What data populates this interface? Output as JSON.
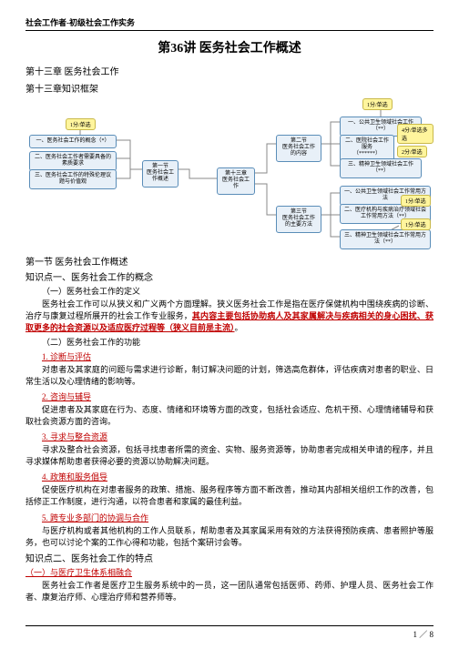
{
  "header": "社会工作者-初级社会工作实务",
  "title": "第36讲 医务社会工作概述",
  "chapter1": "第十三章 医务社会工作",
  "chapter2": "第十三章知识框架",
  "diagram": {
    "colors": {
      "node_fill": "#e8f0f8",
      "node_border": "#5a8db8",
      "tag_fill": "#fff59d",
      "tag_border": "#c9b94a",
      "line": "#888"
    },
    "nodes": {
      "root": "第十三章\n医务社会工作",
      "s1": "第一节\n医务社会工作概述",
      "s2": "第二节\n医务社会工作的内容",
      "s3": "第三节\n医务社会工作的主要方法",
      "l1": "一、医务社会工作的概念（*）",
      "l2": "二、医务社会工作者需要具备的素质要求",
      "l3": "三、医务社会工作的特殊伦理议题与价值观",
      "r1": "一、公共卫生领域社会工作（**）",
      "r2": "二、医院社会工作服务\n（******）",
      "r3": "三、精神卫生领域社会工作（**）",
      "rm1": "一、公共卫生领域社会工作常用方法",
      "rm2": "二、医疗机构与疾病治疗领域社会工作常用方法（**）",
      "rm3": "三、精神卫生领域社会工作常用方法（**）"
    },
    "tags": {
      "t_l1": "1分/单选",
      "t_r1": "1分/单选",
      "t_r2": "4分/单选多选",
      "t_r3": "2分/单选",
      "t_rm2": "1分/单选",
      "t_rm3": "1分/单选"
    }
  },
  "body": {
    "sec1": "第一节 医务社会工作概述",
    "kp1": "知识点一、医务社会工作的概念",
    "sub1": "（一）医务社会工作的定义",
    "para1a": "医务社会工作可以从狭义和广义两个方面理解。狭义医务社会工作是指在医疗保健机构中围绕疾病的诊断、治疗与康复过程所展开的社会工作专业服务，",
    "para1b": "其内容主要包括协助病人及其家属解决与疾病相关的身心困扰、获取更多的社会资源以及适应医疗过程等（狭义目前是主流）",
    "para1c": "。",
    "sub2": "（二）医务社会工作的功能",
    "i1h": "1. 诊断与评估",
    "i1p": "对患者及其家庭的问题与需求进行诊断，制订解决问题的计划，筛选高危群体，评估疾病对患者的职业、日常生活以及心理情绪的影响等。",
    "i2h": "2. 咨询与辅导",
    "i2p": "促进患者及其家庭在行为、态度、情绪和环境等方面的改变，包括社会适应、危机干预、心理情绪辅导和获取社会资源方面的咨询。",
    "i3h": "3. 寻求与整合资源",
    "i3p": "寻求及整合社会资源，包括寻找患者所需的资金、实物、服务资源等，协助患者完成相关申请的程序，并且寻求媒体帮助患者获得必要的资源以协助解决问题。",
    "i4h": "4. 政策和服务倡导",
    "i4p": "促使医疗机构在对患者服务的政策、措施、服务程序等方面不断改善，推动其内部相关组织工作的改善，包括修正工作制度，进行沟通，以符合患者和家属的最佳利益。",
    "i5h": "5. 跨专业多部门的协调与合作",
    "i5p": "与医疗机构或者其他机构的工作人员联系，帮助患者及其家属采用有效的方法获得预防疾病、患者照护等服务，也可以讨论个案的工作心得和功能，包括个案研讨会等。",
    "kp2": "知识点二、医务社会工作的特点",
    "sub3": "（一）与医疗卫生体系相融合",
    "para3": "医务社会工作者是医疗卫生服务系统中的一员，这一团队通常包括医师、药师、护理人员、医务社会工作者、康复治疗师、心理治疗师和营养师等。"
  },
  "footer": "1 ／ 8"
}
